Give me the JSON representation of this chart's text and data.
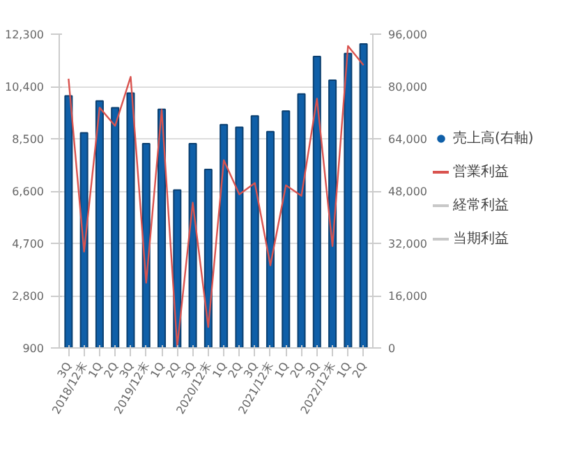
{
  "chart_data": {
    "type": "bar",
    "categories": [
      "3Q",
      "2018/12末",
      "1Q",
      "2Q",
      "3Q",
      "2019/12末",
      "1Q",
      "2Q",
      "3Q",
      "2020/12末",
      "1Q",
      "2Q",
      "3Q",
      "2021/12末",
      "1Q",
      "2Q",
      "3Q",
      "2022/12末",
      "1Q",
      "2Q"
    ],
    "series": [
      {
        "name": "売上高(右軸)",
        "axis": "y2",
        "color": "#0f5fa8",
        "values": [
          77100,
          65800,
          75600,
          73500,
          78000,
          62500,
          73000,
          48300,
          62500,
          54600,
          68300,
          67500,
          71000,
          66200,
          72500,
          77700,
          89200,
          81900,
          90100,
          93000
        ]
      },
      {
        "name": "営業利益",
        "type": "line",
        "color": "#d9534f",
        "values": [
          10680,
          4400,
          9630,
          8970,
          10750,
          3270,
          9550,
          950,
          6180,
          1660,
          7720,
          6480,
          6890,
          3900,
          6810,
          6430,
          9960,
          4600,
          11870,
          11170
        ]
      },
      {
        "name": "経常利益",
        "type": "line",
        "color": "#c8c8c8",
        "values": [
          null,
          null,
          null,
          null,
          null,
          null,
          null,
          null,
          null,
          null,
          null,
          null,
          null,
          null,
          null,
          null,
          null,
          null,
          null,
          null
        ]
      },
      {
        "name": "当期利益",
        "type": "line",
        "color": "#c8c8c8",
        "values": [
          null,
          null,
          null,
          null,
          null,
          null,
          null,
          null,
          null,
          null,
          null,
          null,
          null,
          null,
          null,
          null,
          null,
          null,
          null,
          null
        ]
      }
    ],
    "ylim": [
      900,
      12300
    ],
    "yticks": [
      {
        "value": 900,
        "label": "900"
      },
      {
        "value": 2800,
        "label": "2,800"
      },
      {
        "value": 4700,
        "label": "4,700"
      },
      {
        "value": 6600,
        "label": "6,600"
      },
      {
        "value": 8500,
        "label": "8,500"
      },
      {
        "value": 10400,
        "label": "10,400"
      },
      {
        "value": 12300,
        "label": "12,300"
      }
    ],
    "y2lim": [
      0,
      96000
    ],
    "y2ticks": [
      0,
      {
        "value": 16000,
        "label": "16,000"
      },
      {
        "value": 32000,
        "label": "32,000"
      },
      {
        "value": 48000,
        "label": "48,000"
      },
      {
        "value": 64000,
        "label": "64,000"
      },
      {
        "value": 80000,
        "label": "80,000"
      },
      {
        "value": 96000,
        "label": "96,000"
      }
    ],
    "grid": "y",
    "legend": "right"
  }
}
